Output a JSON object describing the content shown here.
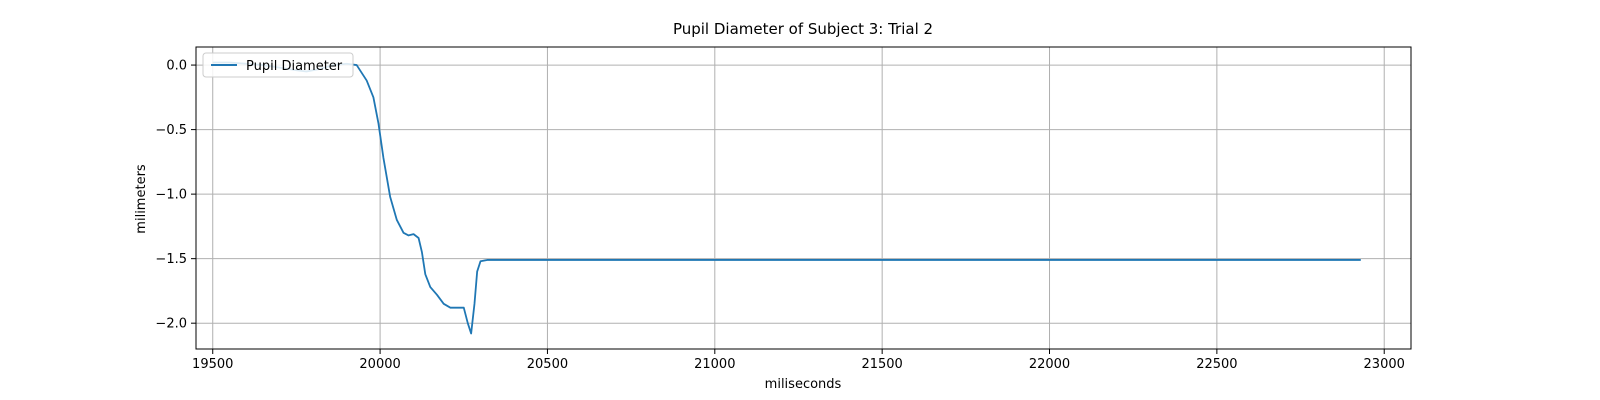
{
  "chart_data": {
    "type": "line",
    "title": "Pupil Diameter of Subject 3: Trial 2",
    "xlabel": "miliseconds",
    "ylabel": "milimeters",
    "xlim": [
      19450,
      23080
    ],
    "ylim": [
      -2.2,
      0.14
    ],
    "xticks": [
      19500,
      20000,
      20500,
      21000,
      21500,
      22000,
      22500,
      23000
    ],
    "xtick_labels": [
      "19500",
      "20000",
      "20500",
      "21000",
      "21500",
      "22000",
      "22500",
      "23000"
    ],
    "yticks": [
      0.0,
      -0.5,
      -1.0,
      -1.5,
      -2.0
    ],
    "ytick_labels": [
      "0.0",
      "−0.5",
      "−1.0",
      "−1.5",
      "−2.0"
    ],
    "grid": true,
    "legend_position": "top-left",
    "series": [
      {
        "name": "Pupil Diameter",
        "color": "#1f77b4",
        "x": [
          19500,
          19550,
          19600,
          19650,
          19700,
          19750,
          19780,
          19820,
          19860,
          19900,
          19930,
          19960,
          19980,
          19995,
          20010,
          20030,
          20050,
          20070,
          20085,
          20100,
          20115,
          20125,
          20135,
          20150,
          20170,
          20190,
          20210,
          20230,
          20250,
          20262,
          20272,
          20282,
          20290,
          20300,
          20320,
          20400,
          20700,
          21000,
          21500,
          22000,
          22500,
          22930
        ],
        "y": [
          0.02,
          0.02,
          0.01,
          0.0,
          -0.02,
          -0.04,
          -0.05,
          -0.03,
          0.0,
          0.01,
          0.0,
          -0.12,
          -0.25,
          -0.45,
          -0.72,
          -1.02,
          -1.2,
          -1.3,
          -1.32,
          -1.31,
          -1.34,
          -1.45,
          -1.62,
          -1.72,
          -1.78,
          -1.85,
          -1.88,
          -1.88,
          -1.88,
          -2.0,
          -2.08,
          -1.85,
          -1.6,
          -1.52,
          -1.51,
          -1.51,
          -1.51,
          -1.51,
          -1.51,
          -1.51,
          -1.51,
          -1.51
        ]
      }
    ]
  }
}
